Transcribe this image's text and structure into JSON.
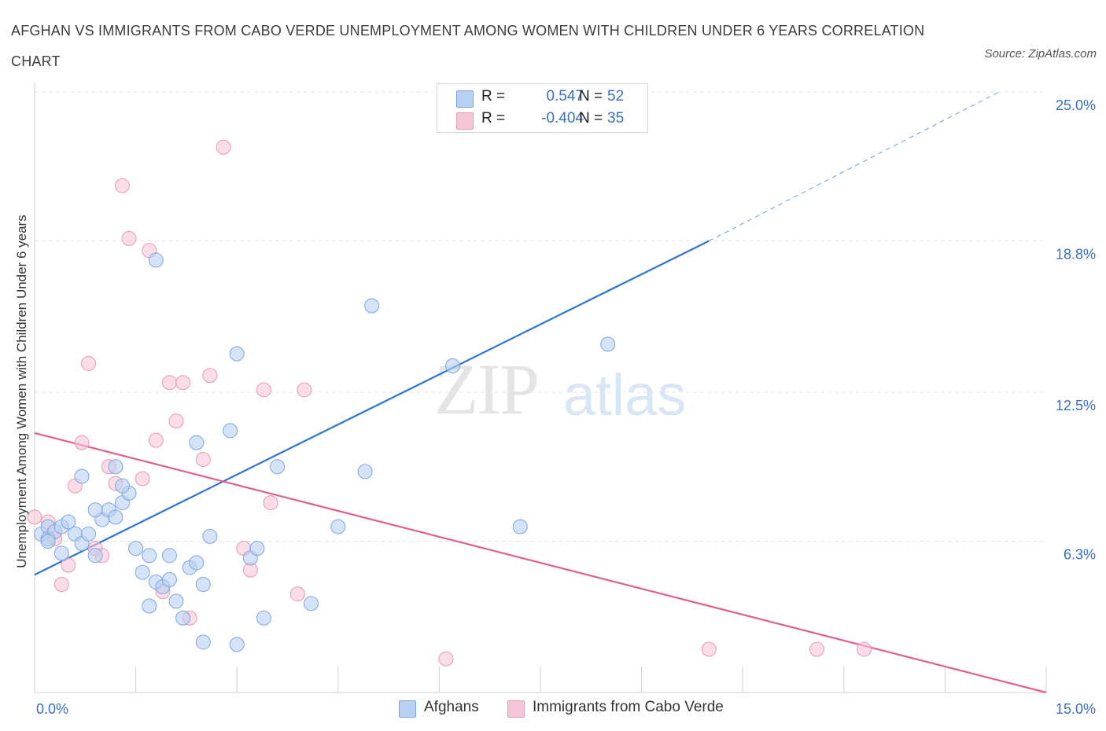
{
  "title": "AFGHAN VS IMMIGRANTS FROM CABO VERDE UNEMPLOYMENT AMONG WOMEN WITH CHILDREN UNDER 6 YEARS CORRELATION CHART",
  "source": "Source: ZipAtlas.com",
  "watermark": {
    "zip": "ZIP",
    "atlas": "atlas"
  },
  "legend": {
    "rows": [
      {
        "r_label": "R =",
        "r_value": "0.547",
        "n_label": "N =",
        "n_value": "52"
      },
      {
        "r_label": "R =",
        "r_value": "-0.404",
        "n_label": "N =",
        "n_value": "35"
      }
    ]
  },
  "colors": {
    "afghans_fill": "#b8d0f2",
    "afghans_stroke": "#7ea6dd",
    "afghans_line": "#2e74d0",
    "cabo_fill": "#f6c6d5",
    "cabo_stroke": "#e79ab3",
    "cabo_line": "#e0608c",
    "grid": "#e3e3e3",
    "tick_text": "#3a6fc4"
  },
  "chart_data": {
    "type": "scatter",
    "title": "AFGHAN VS IMMIGRANTS FROM CABO VERDE UNEMPLOYMENT AMONG WOMEN WITH CHILDREN UNDER 6 YEARS CORRELATION CHART",
    "xlabel": "",
    "ylabel": "Unemployment Among Women with Children Under 6 years",
    "xlim": [
      0,
      15
    ],
    "ylim": [
      0,
      25
    ],
    "x_tick_labels": [
      "0.0%",
      "15.0%"
    ],
    "y_ticks": [
      6.3,
      12.5,
      18.8,
      25.0
    ],
    "y_tick_labels": [
      "6.3%",
      "12.5%",
      "18.8%",
      "25.0%"
    ],
    "grid": true,
    "legend_position": "top-center",
    "series": [
      {
        "name": "Afghans",
        "r": 0.547,
        "n": 52,
        "trend": {
          "x0": 0,
          "y0": 4.9,
          "x1": 10.0,
          "y1": 18.8,
          "dash_to_x": 14.3,
          "dash_to_y": 25.0
        },
        "points": [
          [
            0.1,
            6.6
          ],
          [
            0.2,
            6.9
          ],
          [
            0.2,
            6.4
          ],
          [
            0.3,
            6.7
          ],
          [
            0.4,
            6.9
          ],
          [
            0.5,
            7.1
          ],
          [
            0.4,
            5.8
          ],
          [
            0.6,
            6.6
          ],
          [
            0.7,
            6.2
          ],
          [
            0.8,
            6.6
          ],
          [
            0.9,
            5.7
          ],
          [
            1.0,
            7.2
          ],
          [
            1.1,
            7.6
          ],
          [
            1.2,
            7.3
          ],
          [
            1.3,
            7.9
          ],
          [
            1.4,
            8.3
          ],
          [
            1.5,
            6.0
          ],
          [
            1.6,
            5.0
          ],
          [
            1.7,
            5.7
          ],
          [
            1.8,
            4.6
          ],
          [
            1.9,
            4.4
          ],
          [
            2.0,
            4.7
          ],
          [
            2.1,
            3.8
          ],
          [
            2.2,
            3.1
          ],
          [
            2.3,
            5.2
          ],
          [
            2.4,
            5.4
          ],
          [
            2.5,
            4.5
          ],
          [
            2.6,
            6.5
          ],
          [
            2.4,
            10.4
          ],
          [
            2.5,
            2.1
          ],
          [
            2.9,
            10.9
          ],
          [
            3.0,
            14.1
          ],
          [
            3.2,
            5.6
          ],
          [
            3.3,
            6.0
          ],
          [
            3.4,
            3.1
          ],
          [
            3.6,
            9.4
          ],
          [
            3.0,
            2.0
          ],
          [
            4.1,
            3.7
          ],
          [
            4.5,
            6.9
          ],
          [
            4.9,
            9.2
          ],
          [
            5.0,
            16.1
          ],
          [
            6.2,
            13.6
          ],
          [
            7.2,
            6.9
          ],
          [
            8.5,
            14.5
          ],
          [
            1.8,
            18.0
          ],
          [
            0.7,
            9.0
          ],
          [
            0.9,
            7.6
          ],
          [
            1.2,
            9.4
          ],
          [
            1.3,
            8.6
          ],
          [
            1.7,
            3.6
          ],
          [
            2.0,
            5.7
          ],
          [
            0.2,
            6.3
          ]
        ]
      },
      {
        "name": "Immigrants from Cabo Verde",
        "r": -0.404,
        "n": 35,
        "trend": {
          "x0": 0,
          "y0": 10.8,
          "x1": 15.0,
          "y1": 0.0
        },
        "points": [
          [
            0.0,
            7.3
          ],
          [
            0.2,
            7.1
          ],
          [
            0.3,
            6.4
          ],
          [
            0.4,
            4.5
          ],
          [
            0.5,
            5.3
          ],
          [
            0.6,
            8.6
          ],
          [
            0.7,
            10.4
          ],
          [
            0.8,
            13.7
          ],
          [
            0.9,
            6.0
          ],
          [
            1.0,
            5.7
          ],
          [
            1.1,
            9.4
          ],
          [
            1.2,
            8.7
          ],
          [
            1.3,
            21.1
          ],
          [
            1.4,
            18.9
          ],
          [
            1.6,
            8.9
          ],
          [
            1.7,
            18.4
          ],
          [
            1.8,
            10.5
          ],
          [
            1.9,
            4.2
          ],
          [
            2.0,
            12.9
          ],
          [
            2.1,
            11.3
          ],
          [
            2.2,
            12.9
          ],
          [
            2.3,
            3.1
          ],
          [
            2.5,
            9.7
          ],
          [
            2.6,
            13.2
          ],
          [
            2.8,
            22.7
          ],
          [
            3.1,
            6.0
          ],
          [
            3.2,
            5.1
          ],
          [
            3.4,
            12.6
          ],
          [
            3.5,
            7.9
          ],
          [
            3.9,
            4.1
          ],
          [
            4.0,
            12.6
          ],
          [
            6.1,
            1.4
          ],
          [
            10.0,
            1.8
          ],
          [
            11.6,
            1.8
          ],
          [
            12.3,
            1.8
          ]
        ]
      }
    ]
  }
}
